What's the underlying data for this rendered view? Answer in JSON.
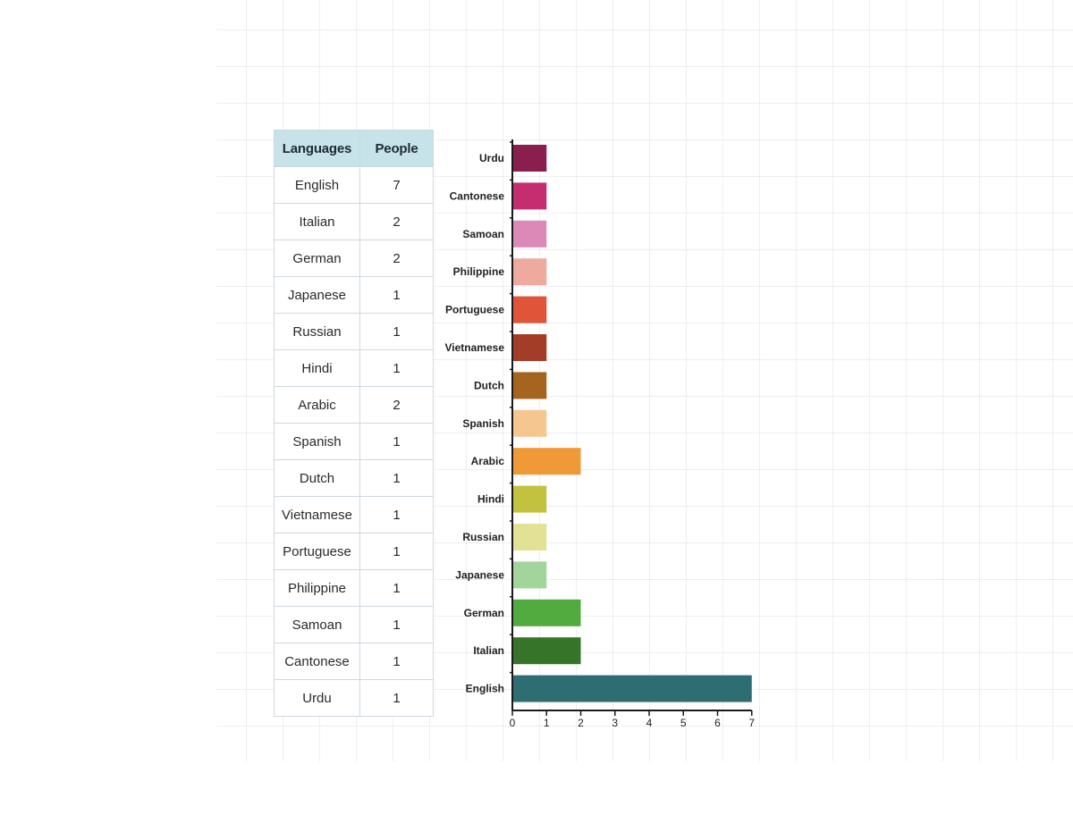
{
  "table": {
    "headers": [
      "Languages",
      "People"
    ],
    "rows": [
      [
        "English",
        "7"
      ],
      [
        "Italian",
        "2"
      ],
      [
        "German",
        "2"
      ],
      [
        "Japanese",
        "1"
      ],
      [
        "Russian",
        "1"
      ],
      [
        "Hindi",
        "1"
      ],
      [
        "Arabic",
        "2"
      ],
      [
        "Spanish",
        "1"
      ],
      [
        "Dutch",
        "1"
      ],
      [
        "Vietnamese",
        "1"
      ],
      [
        "Portuguese",
        "1"
      ],
      [
        "Philippine",
        "1"
      ],
      [
        "Samoan",
        "1"
      ],
      [
        "Cantonese",
        "1"
      ],
      [
        "Urdu",
        "1"
      ]
    ]
  },
  "chart_data": {
    "type": "bar",
    "orientation": "horizontal",
    "title": "",
    "xlabel": "",
    "ylabel": "",
    "xlim": [
      0,
      7
    ],
    "x_ticks": [
      0,
      1,
      2,
      3,
      4,
      5,
      6,
      7
    ],
    "grid": true,
    "categories": [
      "Urdu",
      "Cantonese",
      "Samoan",
      "Philippine",
      "Portuguese",
      "Vietnamese",
      "Dutch",
      "Spanish",
      "Arabic",
      "Hindi",
      "Russian",
      "Japanese",
      "German",
      "Italian",
      "English"
    ],
    "values": [
      1,
      1,
      1,
      1,
      1,
      1,
      1,
      1,
      2,
      1,
      1,
      1,
      2,
      2,
      7
    ],
    "colors": [
      "#8a1e4e",
      "#c42d6f",
      "#db8ab8",
      "#eeaa9c",
      "#e0553a",
      "#a33d28",
      "#a6651f",
      "#f5c690",
      "#ef9a36",
      "#c3c23f",
      "#e2e196",
      "#a2d59a",
      "#52ab3f",
      "#367529",
      "#2e6e73"
    ]
  }
}
